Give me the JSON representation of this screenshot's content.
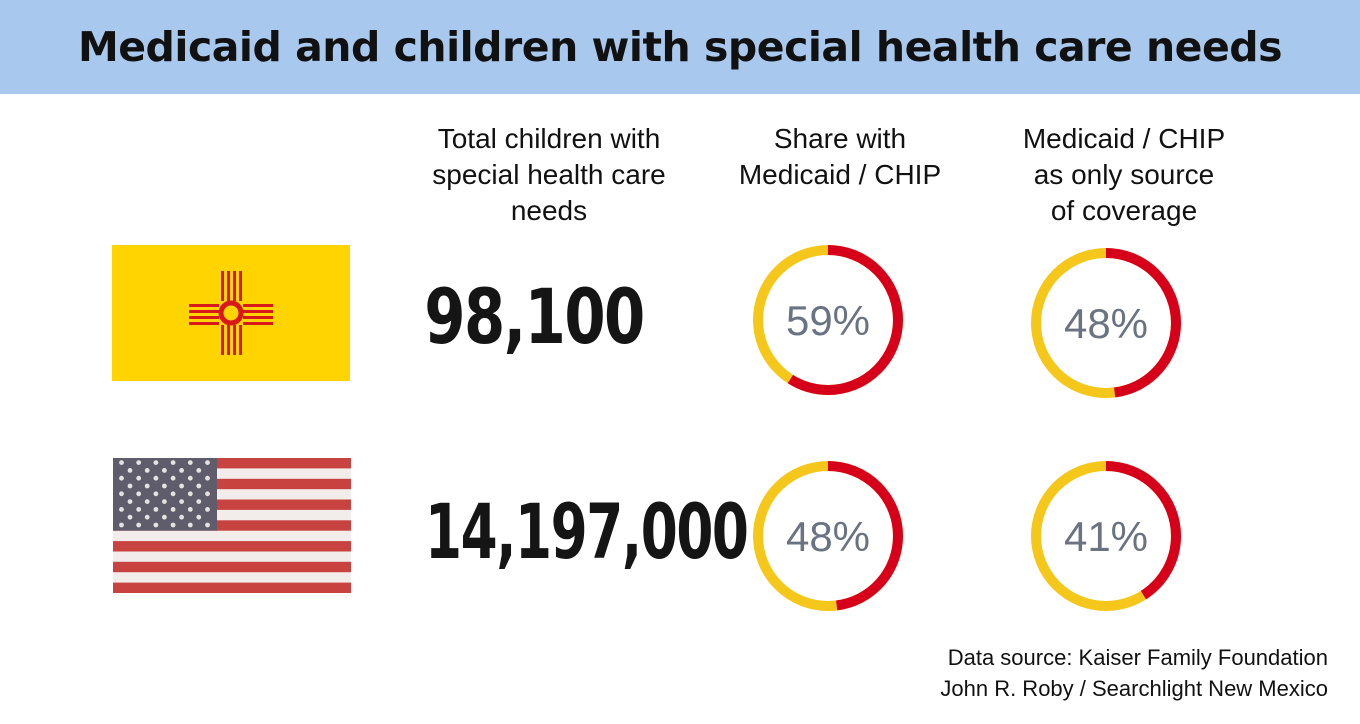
{
  "title": "Medicaid and children with special health care needs",
  "columns": {
    "total": "Total children with\nspecial health care\nneeds",
    "share": "Share with\nMedicaid / CHIP",
    "only": "Medicaid / CHIP\nas only source\nof coverage"
  },
  "rows": [
    {
      "flag_icon": "new-mexico-flag-icon",
      "total": "98,100",
      "share": "59%",
      "only": "48%"
    },
    {
      "flag_icon": "us-flag-icon",
      "total": "14,197,000",
      "share": "48%",
      "only": "41%"
    }
  ],
  "chart_data": {
    "type": "pie",
    "series": [
      {
        "name": "Share with Medicaid / CHIP",
        "categories": [
          "New Mexico",
          "United States"
        ],
        "values": [
          59,
          48
        ]
      },
      {
        "name": "Medicaid / CHIP as only source of coverage",
        "categories": [
          "New Mexico",
          "United States"
        ],
        "values": [
          48,
          41
        ]
      }
    ],
    "colors": {
      "filled": "#d7001b",
      "remainder": "#f5c71a",
      "label": "#6a7381"
    }
  },
  "footer": {
    "source": "Data source: Kaiser Family Foundation",
    "credit": "John R. Roby / Searchlight New Mexico"
  },
  "colors": {
    "header_bg": "#a8c8ee",
    "nm_yellow": "#ffd400",
    "nm_red": "#d7191c"
  }
}
